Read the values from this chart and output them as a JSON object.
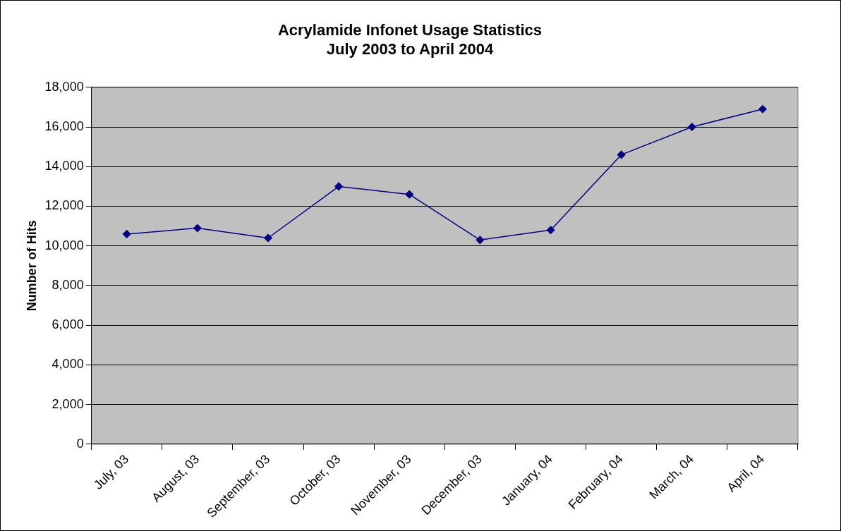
{
  "chart_data": {
    "type": "line",
    "title": [
      "Acrylamide Infonet Usage Statistics",
      "July 2003 to April 2004"
    ],
    "ylabel": "Number of Hits",
    "categories": [
      "July, 03",
      "August, 03",
      "September, 03",
      "October, 03",
      "November, 03",
      "December, 03",
      "January, 04",
      "February, 04",
      "March, 04",
      "April, 04"
    ],
    "series": [
      {
        "color": "#000080",
        "values": [
          10600,
          10900,
          10400,
          13000,
          12600,
          10300,
          10800,
          14600,
          16000,
          16900
        ]
      }
    ],
    "ylim": [
      0,
      18000
    ],
    "yticks": [
      {
        "value": 0,
        "label": "0"
      },
      {
        "value": 2000,
        "label": "2,000"
      },
      {
        "value": 4000,
        "label": "4,000"
      },
      {
        "value": 6000,
        "label": "6,000"
      },
      {
        "value": 8000,
        "label": "8,000"
      },
      {
        "value": 10000,
        "label": "10,000"
      },
      {
        "value": 12000,
        "label": "12,000"
      },
      {
        "value": 14000,
        "label": "14,000"
      },
      {
        "value": 16000,
        "label": "16,000"
      },
      {
        "value": 18000,
        "label": "18,000"
      }
    ],
    "grid": "y",
    "legend": false,
    "marker": "diamond",
    "line_style": "solid"
  }
}
